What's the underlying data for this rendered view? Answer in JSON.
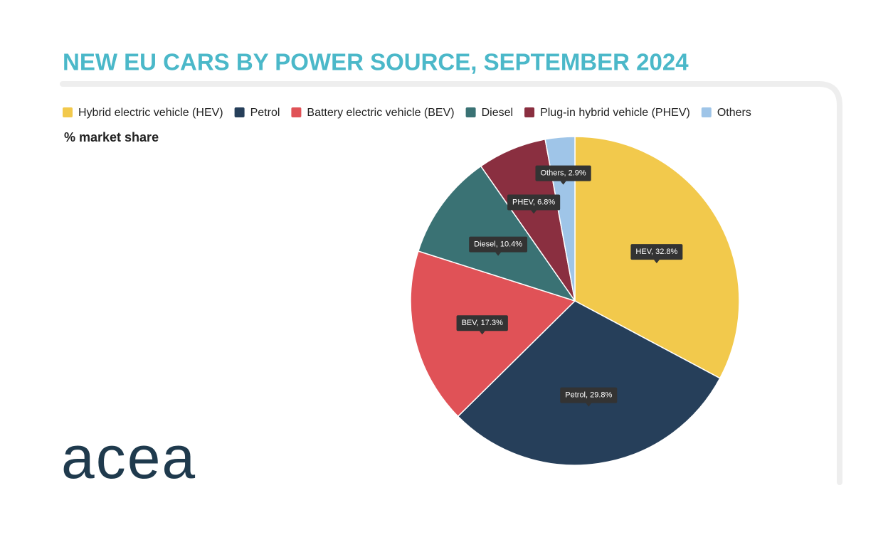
{
  "chart_data": {
    "type": "pie",
    "title": "NEW EU CARS BY POWER SOURCE, SEPTEMBER 2024",
    "subtitle": "% market share",
    "logo": "acea",
    "categories": [
      "Hybrid electric vehicle (HEV)",
      "Petrol",
      "Battery electric vehicle (BEV)",
      "Diesel",
      "Plug-in hybrid vehicle (PHEV)",
      "Others"
    ],
    "values": [
      32.8,
      29.8,
      17.3,
      10.4,
      6.8,
      2.9
    ],
    "value_labels": [
      "HEV, 32.8%",
      "Petrol, 29.8%",
      "BEV, 17.3%",
      "Diesel, 10.4%",
      "PHEV, 6.8%",
      "Others, 2.9%"
    ],
    "colors": [
      "#f2c94c",
      "#263f5a",
      "#e05257",
      "#3a7274",
      "#8a2f40",
      "#9fc5e8"
    ],
    "legend": "top"
  }
}
